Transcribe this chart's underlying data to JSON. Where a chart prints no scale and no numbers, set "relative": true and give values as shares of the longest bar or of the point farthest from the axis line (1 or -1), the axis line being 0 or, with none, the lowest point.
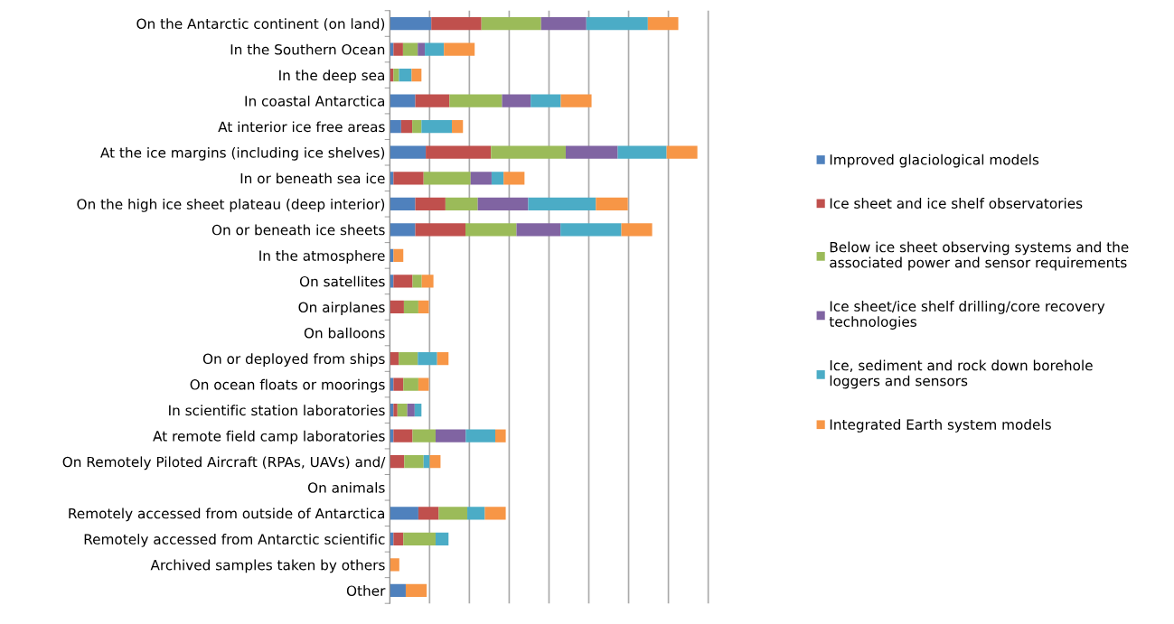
{
  "chart_data": {
    "type": "bar",
    "orientation": "horizontal",
    "stacked": true,
    "relative": true,
    "grid": "x",
    "legend": "right",
    "categories": [
      "On the Antarctic continent (on land)",
      "In the Southern Ocean",
      "In the deep sea",
      "In coastal Antarctica",
      "At interior ice free areas",
      "At the ice margins (including ice shelves)",
      "In or beneath sea ice",
      "On the high ice sheet plateau (deep interior)",
      "On or beneath ice sheets",
      "In the atmosphere",
      "On satellites",
      "On airplanes",
      "On balloons",
      "On or deployed from ships",
      "On ocean floats or moorings",
      "In scientific station laboratories",
      "At remote field camp laboratories",
      "On Remotely Piloted Aircraft (RPAs, UAVs) and/",
      "On animals",
      "Remotely accessed from outside of Antarctica",
      "Remotely accessed from Antarctic scientific",
      "Archived samples taken by others",
      "Other"
    ],
    "series": [
      {
        "name": "Improved glaciological models",
        "color": "#4f81bd",
        "values": [
          0.135,
          0.012,
          0,
          0.083,
          0.037,
          0.117,
          0.012,
          0.083,
          0.083,
          0.012,
          0.012,
          0,
          0,
          0,
          0.012,
          0.012,
          0.012,
          0,
          0,
          0.093,
          0.012,
          0,
          0.052
        ]
      },
      {
        "name": "Ice sheet and ice shelf observatories",
        "color": "#c0504d",
        "values": [
          0.163,
          0.031,
          0.012,
          0.111,
          0.036,
          0.212,
          0.098,
          0.098,
          0.163,
          0,
          0.062,
          0.046,
          0,
          0.029,
          0.032,
          0.013,
          0.062,
          0.047,
          0,
          0.066,
          0.032,
          0,
          0
        ]
      },
      {
        "name": "Below ice sheet observing systems and the\nassociated power and sensor requirements",
        "color": "#9bbb59",
        "values": [
          0.194,
          0.048,
          0.018,
          0.171,
          0.03,
          0.243,
          0.153,
          0.105,
          0.166,
          0,
          0.03,
          0.047,
          0,
          0.062,
          0.049,
          0.032,
          0.075,
          0.063,
          0,
          0.093,
          0.105,
          0,
          0
        ]
      },
      {
        "name": "Ice sheet/ice shelf drilling/core recovery\ntechnologies",
        "color": "#8064a2",
        "values": [
          0.147,
          0.023,
          0,
          0.093,
          0,
          0.169,
          0.068,
          0.164,
          0.143,
          0,
          0,
          0,
          0,
          0,
          0,
          0.024,
          0.098,
          0,
          0,
          0,
          0,
          0,
          0
        ]
      },
      {
        "name": "Ice, sediment and rock down borehole\nloggers and sensors",
        "color": "#4bacc6",
        "values": [
          0.2,
          0.062,
          0.041,
          0.098,
          0.099,
          0.159,
          0.039,
          0.22,
          0.198,
          0,
          0,
          0,
          0,
          0.063,
          0,
          0.022,
          0.096,
          0.02,
          0,
          0.057,
          0.042,
          0,
          0
        ]
      },
      {
        "name": "Integrated Earth system models",
        "color": "#f79646",
        "values": [
          0.099,
          0.1,
          0.032,
          0.1,
          0.036,
          0.1,
          0.068,
          0.104,
          0.1,
          0.032,
          0.038,
          0.034,
          0,
          0.037,
          0.034,
          0,
          0.034,
          0.035,
          0,
          0.068,
          0,
          0.031,
          0.068
        ]
      }
    ]
  }
}
